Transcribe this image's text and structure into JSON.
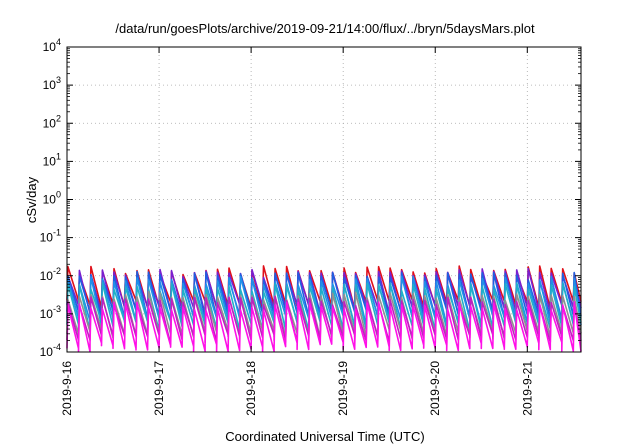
{
  "chart_data": {
    "type": "line",
    "title": "/data/run/goesPlots/archive/2019-09-21/14:00/flux/../bryn/5daysMars.plot",
    "xlabel": "Coordinated Universal Time (UTC)",
    "ylabel": "cSv/day",
    "y_scale": "log",
    "ylim": [
      0.0001,
      10000
    ],
    "xlim": [
      "2019-09-16T00:00",
      "2019-09-21T14:00"
    ],
    "grid": true,
    "legend": "none",
    "x_ticks": [
      "2019-9-16",
      "2019-9-17",
      "2019-9-18",
      "2019-9-19",
      "2019-9-20",
      "2019-9-21"
    ],
    "y_ticks": [
      {
        "value": 0.0001,
        "base": "10",
        "exp": "-4"
      },
      {
        "value": 0.001,
        "base": "10",
        "exp": "-3"
      },
      {
        "value": 0.01,
        "base": "10",
        "exp": "-2"
      },
      {
        "value": 0.1,
        "base": "10",
        "exp": "-1"
      },
      {
        "value": 1,
        "base": "10",
        "exp": "0"
      },
      {
        "value": 10,
        "base": "10",
        "exp": "1"
      },
      {
        "value": 100,
        "base": "10",
        "exp": "2"
      },
      {
        "value": 1000,
        "base": "10",
        "exp": "3"
      },
      {
        "value": 10000,
        "base": "10",
        "exp": "4"
      }
    ],
    "sawtooth_period_hours": 3,
    "series": [
      {
        "color": "#e0101a",
        "peak": 0.014,
        "trough": 0.0018
      },
      {
        "color": "#7a1fd0",
        "peak": 0.012,
        "trough": 0.0014
      },
      {
        "color": "#1f5fe0",
        "peak": 0.01,
        "trough": 0.001
      },
      {
        "color": "#2090e8",
        "peak": 0.0075,
        "trough": 0.0007
      },
      {
        "color": "#20b0c8",
        "peak": 0.005,
        "trough": 0.0005
      },
      {
        "color": "#909090",
        "peak": 0.003,
        "trough": 0.0003
      },
      {
        "color": "#c020c0",
        "peak": 0.0022,
        "trough": 0.00022
      },
      {
        "color": "#ff10e8",
        "peak": 0.0016,
        "trough": 0.00014
      }
    ]
  }
}
